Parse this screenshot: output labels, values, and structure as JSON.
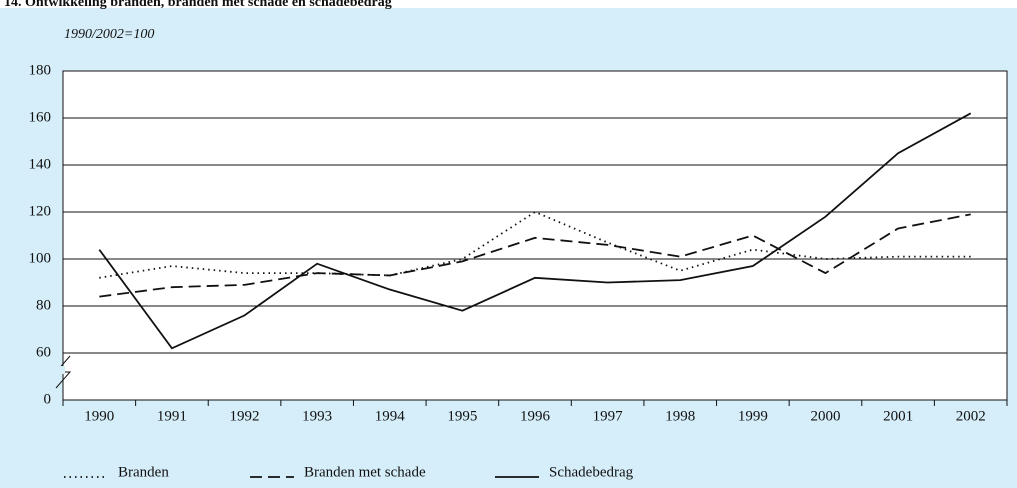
{
  "chart_data": {
    "type": "line",
    "title": "14. Ontwikkeling branden, branden met schade en schadebedrag",
    "subtitle": "1990/2002=100",
    "categories": [
      "1990",
      "1991",
      "1992",
      "1993",
      "1994",
      "1995",
      "1996",
      "1997",
      "1998",
      "1999",
      "2000",
      "2001",
      "2002"
    ],
    "series": [
      {
        "name": "Branden",
        "color": "#111111",
        "dash": "dotted",
        "values": [
          92,
          97,
          94,
          94,
          93,
          100,
          120,
          107,
          95,
          104,
          100,
          101,
          101
        ]
      },
      {
        "name": "Branden met schade",
        "color": "#111111",
        "dash": "dashed",
        "values": [
          84,
          88,
          89,
          94,
          93,
          99,
          109,
          106,
          101,
          110,
          94,
          113,
          119
        ]
      },
      {
        "name": "Schadebedrag",
        "color": "#111111",
        "dash": "solid",
        "values": [
          104,
          62,
          76,
          98,
          87,
          78,
          92,
          90,
          91,
          97,
          118,
          145,
          162
        ]
      }
    ],
    "ylim": [
      0,
      180
    ],
    "yticks": [
      0,
      60,
      80,
      100,
      120,
      140,
      160,
      180
    ],
    "broken_axis": true,
    "grid": true,
    "legend": "bottom"
  }
}
